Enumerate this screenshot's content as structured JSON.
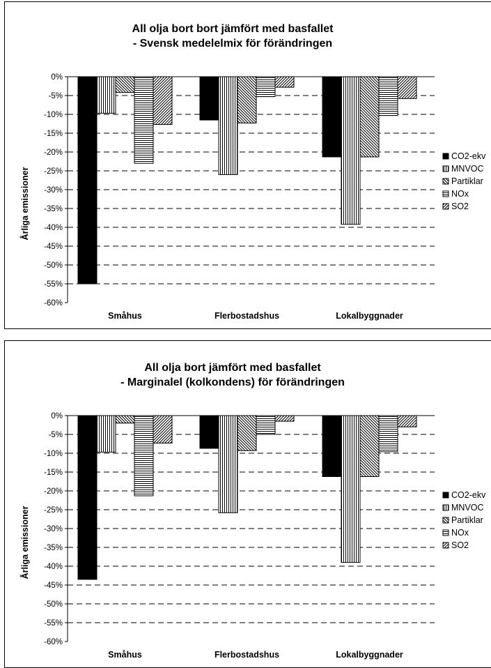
{
  "chart_data": [
    {
      "type": "bar",
      "title": [
        "All olja bort bort  jämfört med basfallet",
        "- Svensk medelelmix för förändringen"
      ],
      "xlabel": "",
      "ylabel": "Årliga emissioner",
      "ylim": [
        -60,
        0
      ],
      "yticks": [
        "0%",
        "-5%",
        "-10%",
        "-15%",
        "-20%",
        "-25%",
        "-30%",
        "-35%",
        "-40%",
        "-45%",
        "-50%",
        "-55%",
        "-60%"
      ],
      "categories": [
        "Småhus",
        "Flerbostadshus",
        "Lokalbyggnader"
      ],
      "grid": true,
      "legend_position": "right",
      "series": [
        {
          "name": "CO2-ekv",
          "pattern": "solid",
          "values": [
            -55,
            -11.5,
            -21.3
          ]
        },
        {
          "name": "MNVOC",
          "pattern": "vertical",
          "values": [
            -9.7,
            -26,
            -39.2
          ]
        },
        {
          "name": "Partiklar",
          "pattern": "diag-back",
          "values": [
            -4.2,
            -12.3,
            -21.3
          ]
        },
        {
          "name": "NOx",
          "pattern": "horizontal",
          "values": [
            -23,
            -5.3,
            -10.3
          ]
        },
        {
          "name": "SO2",
          "pattern": "diag-fwd",
          "values": [
            -12.7,
            -2.8,
            -5.8
          ]
        }
      ]
    },
    {
      "type": "bar",
      "title": [
        "All olja bort jämfört med basfallet",
        "- Marginalel (kolkondens) för förändringen"
      ],
      "xlabel": "",
      "ylabel": "Årliga emissioner",
      "ylim": [
        -60,
        0
      ],
      "yticks": [
        "0%",
        "-5%",
        "-10%",
        "-15%",
        "-20%",
        "-25%",
        "-30%",
        "-35%",
        "-40%",
        "-45%",
        "-50%",
        "-55%",
        "-60%"
      ],
      "categories": [
        "Småhus",
        "Flerbostadshus",
        "Lokalbyggnader"
      ],
      "grid": true,
      "legend_position": "right",
      "series": [
        {
          "name": "CO2-ekv",
          "pattern": "solid",
          "values": [
            -43.5,
            -8.7,
            -16.2
          ]
        },
        {
          "name": "MNVOC",
          "pattern": "vertical",
          "values": [
            -9.7,
            -25.8,
            -39
          ]
        },
        {
          "name": "Partiklar",
          "pattern": "diag-back",
          "values": [
            -2,
            -9.3,
            -16.2
          ]
        },
        {
          "name": "NOx",
          "pattern": "horizontal",
          "values": [
            -21.3,
            -5,
            -9.6
          ]
        },
        {
          "name": "SO2",
          "pattern": "diag-fwd",
          "values": [
            -7.3,
            -1.5,
            -3
          ]
        }
      ]
    }
  ]
}
